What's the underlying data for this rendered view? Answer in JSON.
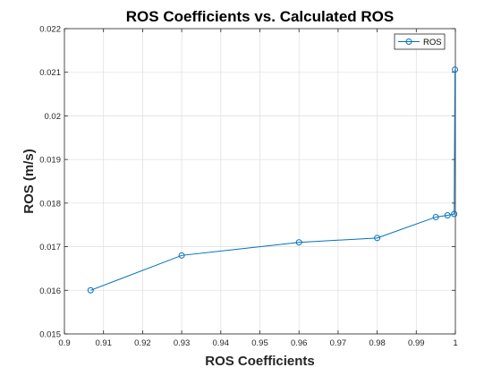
{
  "chart_data": {
    "type": "line",
    "title": "ROS Coefficients vs. Calculated ROS",
    "xlabel": "ROS Coefficients",
    "ylabel": "ROS (m/s)",
    "xlim": [
      0.9,
      1.0
    ],
    "ylim": [
      0.015,
      0.022
    ],
    "xticks": [
      "0.9",
      "0.91",
      "0.92",
      "0.93",
      "0.94",
      "0.95",
      "0.96",
      "0.97",
      "0.98",
      "0.99",
      "1"
    ],
    "yticks": [
      "0.015",
      "0.016",
      "0.017",
      "0.018",
      "0.019",
      "0.02",
      "0.021",
      "0.022"
    ],
    "grid": true,
    "legend_position": "top-right",
    "series": [
      {
        "name": "ROS",
        "color": "#0072BD",
        "marker": "circle",
        "points": [
          {
            "x": 0.9067,
            "y": 0.016
          },
          {
            "x": 0.93,
            "y": 0.0168
          },
          {
            "x": 0.96,
            "y": 0.0171
          },
          {
            "x": 0.98,
            "y": 0.0172
          },
          {
            "x": 0.995,
            "y": 0.01768
          },
          {
            "x": 0.998,
            "y": 0.01772
          },
          {
            "x": 0.9997,
            "y": 0.01775
          },
          {
            "x": 0.9999,
            "y": 0.02106
          }
        ]
      }
    ]
  }
}
